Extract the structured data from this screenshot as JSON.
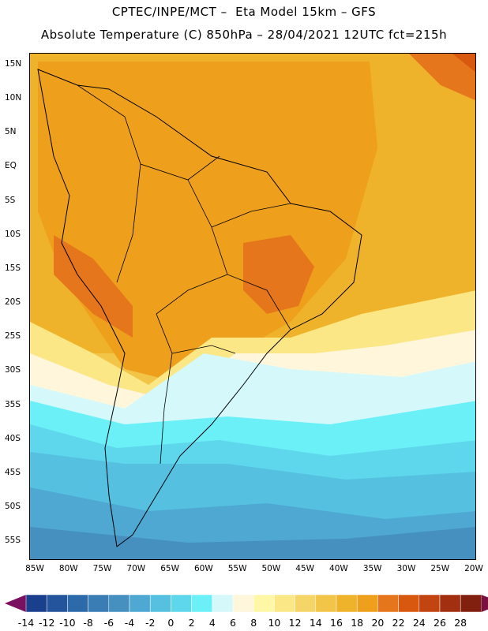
{
  "header": {
    "line1": "CPTEC/INPE/MCT –  Eta Model 15km – GFS",
    "line2": "Absolute Temperature (C) 850hPa – 28/04/2021 12UTC fct=215h"
  },
  "map": {
    "lat_labels": [
      "15N",
      "10N",
      "5N",
      "EQ",
      "5S",
      "10S",
      "15S",
      "20S",
      "25S",
      "30S",
      "35S",
      "40S",
      "45S",
      "50S",
      "55S"
    ],
    "lon_labels": [
      "85W",
      "80W",
      "75W",
      "70W",
      "65W",
      "60W",
      "55W",
      "50W",
      "45W",
      "40W",
      "35W",
      "30W",
      "25W",
      "20W"
    ]
  },
  "colorbar": {
    "labels": [
      "-14",
      "-12",
      "-10",
      "-8",
      "-6",
      "-4",
      "-2",
      "0",
      "2",
      "4",
      "6",
      "8",
      "10",
      "12",
      "14",
      "16",
      "18",
      "20",
      "22",
      "24",
      "26",
      "28"
    ],
    "colors": [
      "#1a3f8c",
      "#23549c",
      "#2c6aaa",
      "#3a7db5",
      "#4690c0",
      "#4fa8d2",
      "#55c0e0",
      "#5ed6ec",
      "#6cf0f8",
      "#d5f8fb",
      "#fff6dc",
      "#fdf7a6",
      "#fbe785",
      "#f6d568",
      "#f2c549",
      "#efb32b",
      "#eea01c",
      "#e5761b",
      "#d9580f",
      "#c24411",
      "#a23010",
      "#822010"
    ],
    "low_arrow_color": "#7a1060",
    "high_arrow_color": "#7a1040"
  }
}
